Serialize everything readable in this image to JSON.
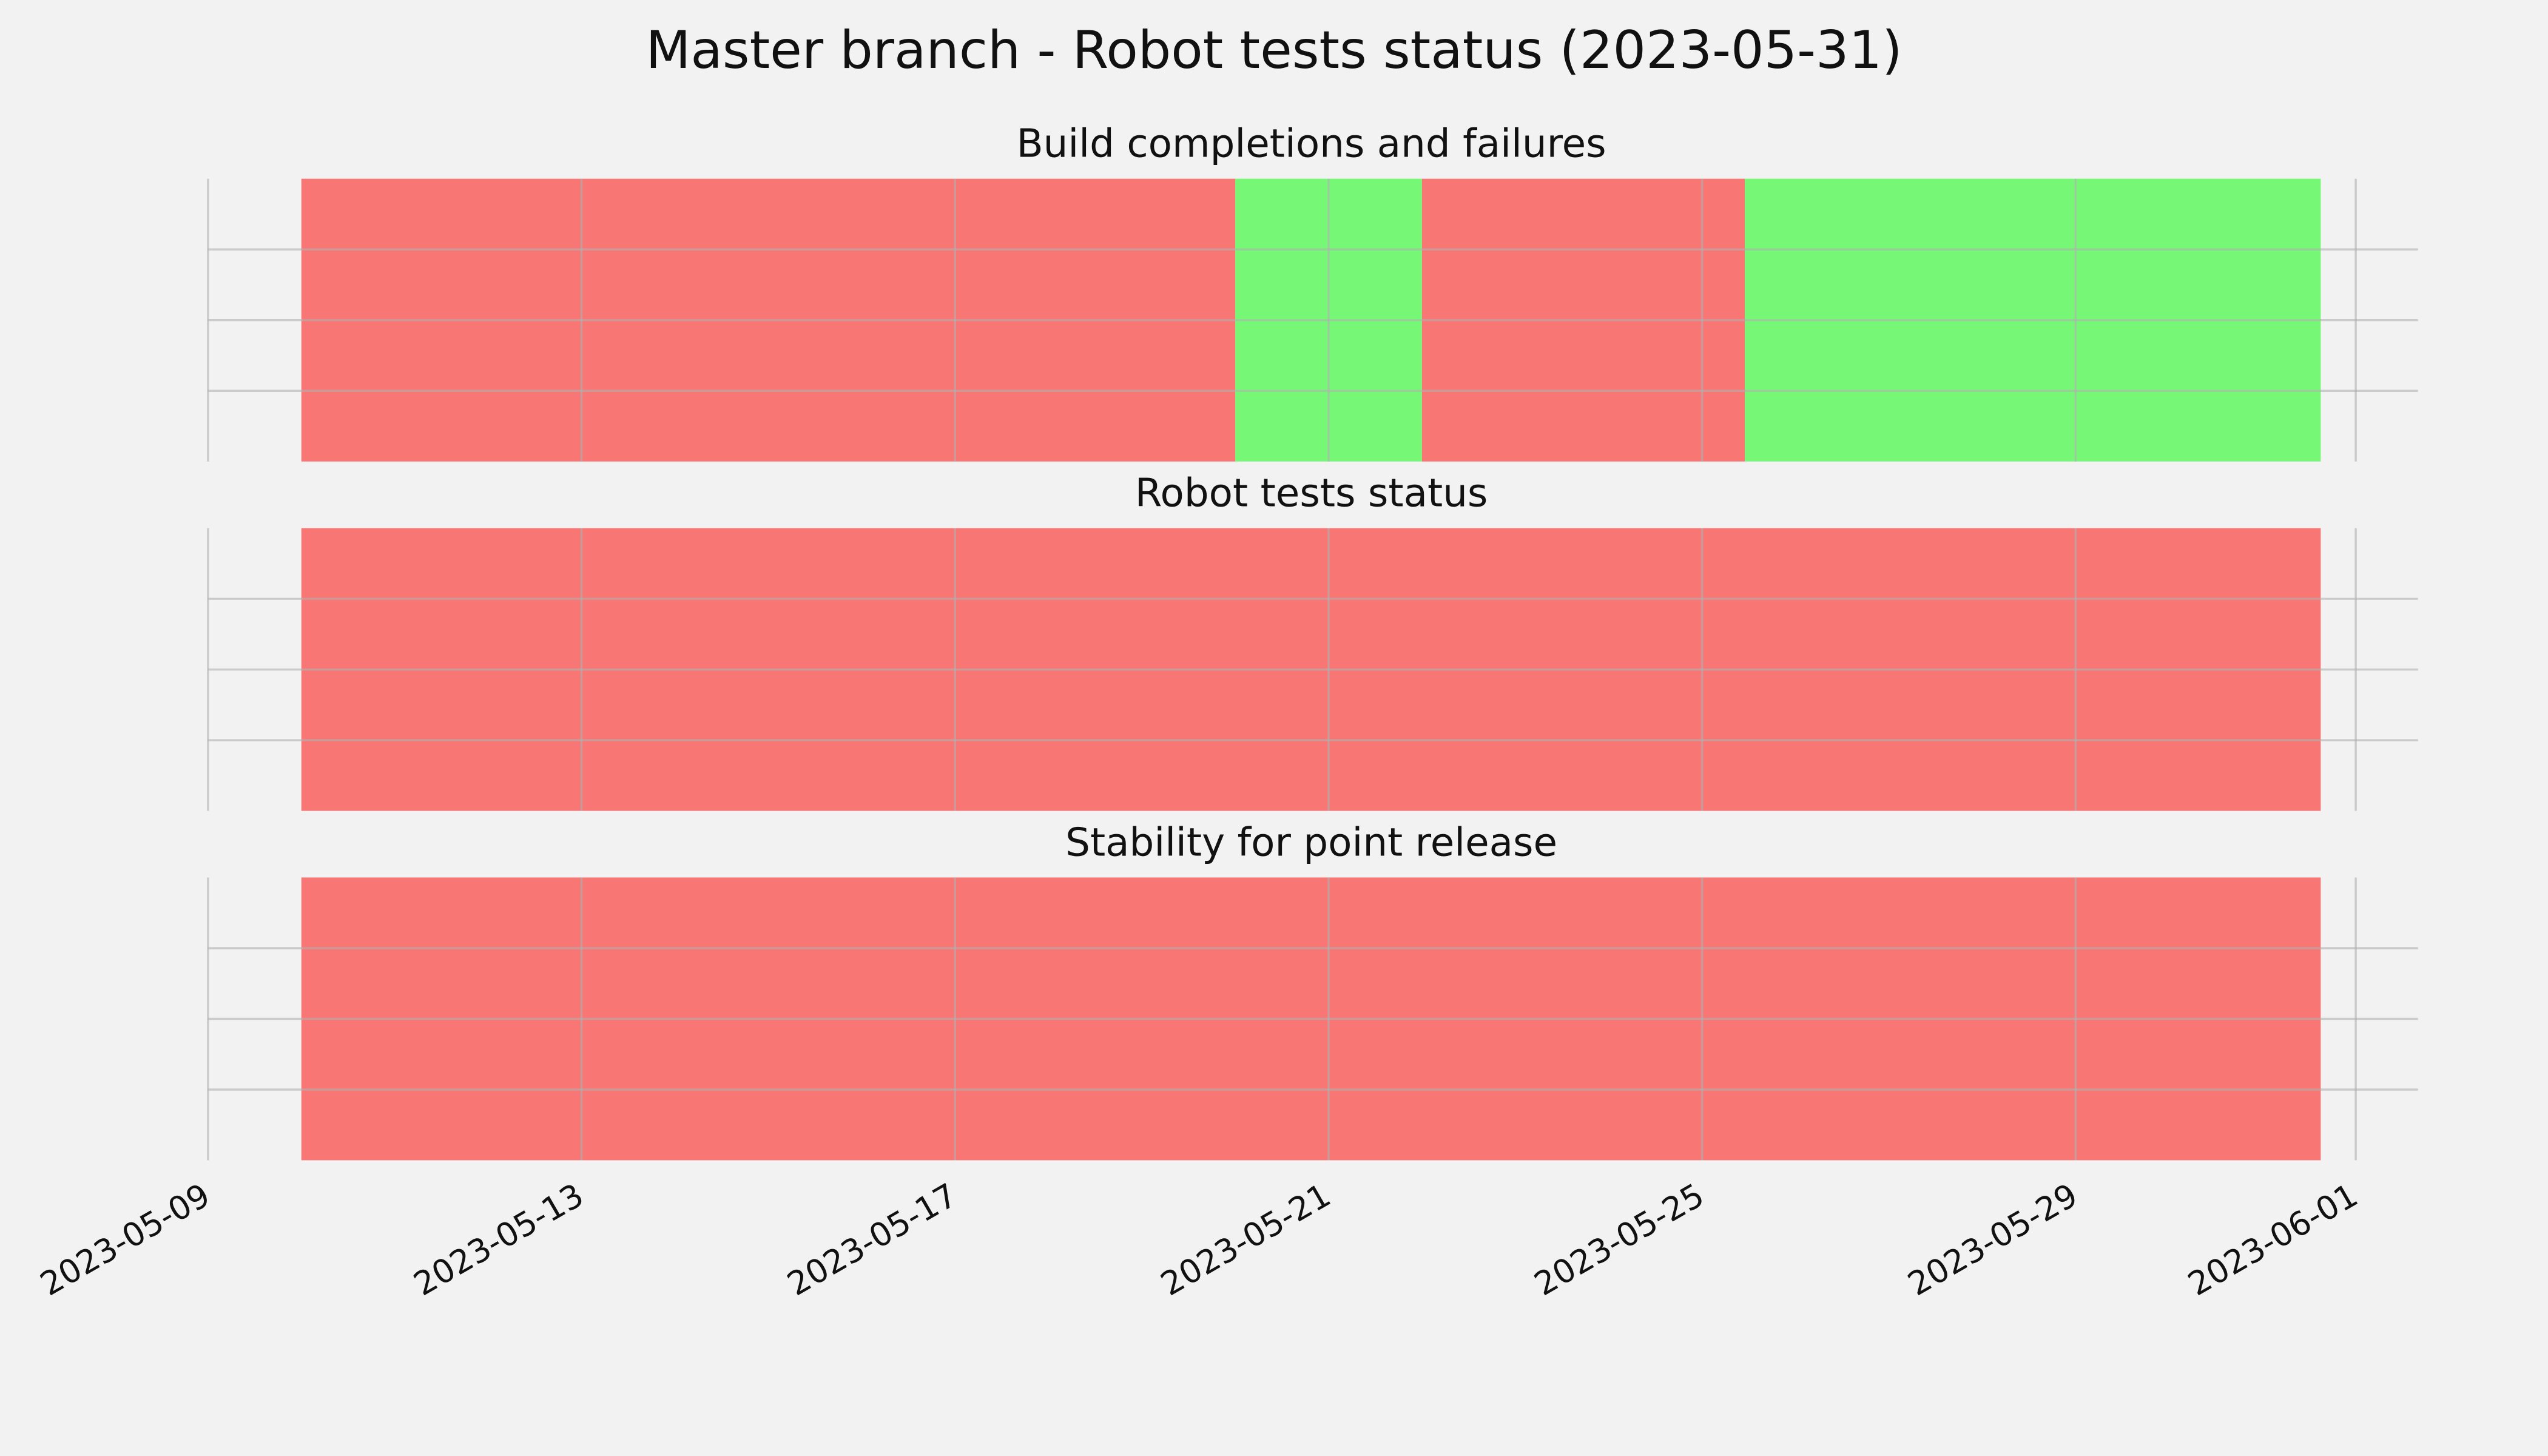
{
  "chart_data": {
    "type": "timeline",
    "title": "Master branch - Robot tests status (2023-05-31)",
    "xlim": [
      "2023-05-09",
      "2023-06-01T16:00"
    ],
    "xticks": [
      "2023-05-09",
      "2023-05-13",
      "2023-05-17",
      "2023-05-21",
      "2023-05-25",
      "2023-05-29",
      "2023-06-01"
    ],
    "ylim": [
      0,
      1
    ],
    "yticks": [
      0.25,
      0.5,
      0.75
    ],
    "grid": true,
    "panels": [
      {
        "title": "Build completions and failures",
        "segments": [
          {
            "start": "2023-05-10",
            "end": "2023-05-20",
            "color": "#f87674"
          },
          {
            "start": "2023-05-20",
            "end": "2023-05-22",
            "color": "#76f776"
          },
          {
            "start": "2023-05-22",
            "end": "2023-05-25T11:00",
            "color": "#f87674"
          },
          {
            "start": "2023-05-25T11:00",
            "end": "2023-05-31T15:00",
            "color": "#76f776"
          }
        ]
      },
      {
        "title": "Robot tests status",
        "segments": [
          {
            "start": "2023-05-10",
            "end": "2023-05-31T15:00",
            "color": "#f87674"
          }
        ]
      },
      {
        "title": "Stability for point release",
        "segments": [
          {
            "start": "2023-05-10",
            "end": "2023-05-31T15:00",
            "color": "#f87674"
          }
        ]
      }
    ]
  }
}
